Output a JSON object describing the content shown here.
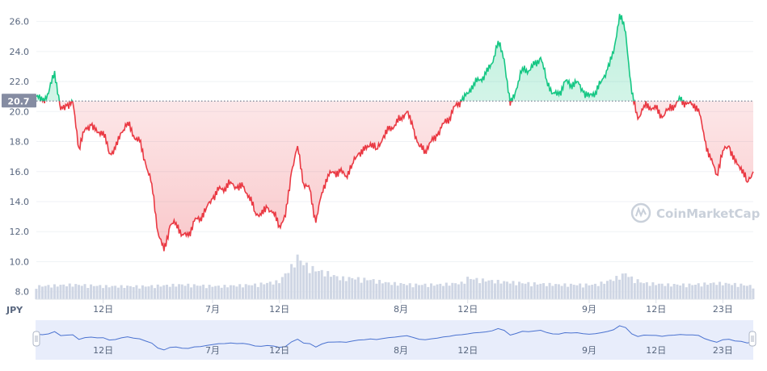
{
  "chart_data": {
    "type": "area",
    "currency": "JPY",
    "baseline": 20.7,
    "baseline_label": "20.7",
    "ylim": [
      7.5,
      27.0
    ],
    "y_ticks": [
      8.0,
      10.0,
      12.0,
      14.0,
      16.0,
      18.0,
      20.0,
      22.0,
      24.0,
      26.0
    ],
    "y_tick_labels": [
      "8.0",
      "10.0",
      "12.0",
      "14.0",
      "16.0",
      "18.0",
      "20.0",
      "22.0",
      "24.0",
      "26.0"
    ],
    "x_range": [
      0,
      118
    ],
    "x_ticks": [
      {
        "day": 11,
        "label": "12日"
      },
      {
        "day": 29,
        "label": "7月"
      },
      {
        "day": 40,
        "label": "12日"
      },
      {
        "day": 60,
        "label": "8月"
      },
      {
        "day": 71,
        "label": "12日"
      },
      {
        "day": 91,
        "label": "9月"
      },
      {
        "day": 102,
        "label": "12日"
      },
      {
        "day": 113,
        "label": "23日"
      }
    ],
    "colors": {
      "up": "#16c784",
      "down": "#ea3943",
      "volume": "#cfd6e4",
      "navigator": "#4a72d0",
      "navigator_fill": "#e6ecfb"
    },
    "watermark": "CoinMarketCap",
    "price": [
      [
        0,
        21.0
      ],
      [
        1,
        20.7
      ],
      [
        2,
        21.2
      ],
      [
        3,
        22.7
      ],
      [
        4,
        20.1
      ],
      [
        5,
        20.4
      ],
      [
        6,
        20.6
      ],
      [
        7,
        17.6
      ],
      [
        8,
        18.8
      ],
      [
        9,
        19.1
      ],
      [
        10,
        18.6
      ],
      [
        11,
        18.7
      ],
      [
        12,
        17.2
      ],
      [
        13,
        17.5
      ],
      [
        14,
        18.6
      ],
      [
        15,
        19.3
      ],
      [
        16,
        18.4
      ],
      [
        17,
        18.0
      ],
      [
        18,
        16.5
      ],
      [
        19,
        15.2
      ],
      [
        20,
        12.0
      ],
      [
        21,
        10.7
      ],
      [
        22,
        12.4
      ],
      [
        23,
        12.6
      ],
      [
        24,
        11.8
      ],
      [
        25,
        11.7
      ],
      [
        26,
        12.7
      ],
      [
        27,
        12.9
      ],
      [
        28,
        13.6
      ],
      [
        29,
        14.2
      ],
      [
        30,
        14.8
      ],
      [
        31,
        14.9
      ],
      [
        32,
        15.3
      ],
      [
        33,
        14.9
      ],
      [
        34,
        15.0
      ],
      [
        35,
        14.4
      ],
      [
        36,
        13.3
      ],
      [
        37,
        13.1
      ],
      [
        38,
        13.6
      ],
      [
        39,
        13.3
      ],
      [
        40,
        12.4
      ],
      [
        41,
        13.0
      ],
      [
        42,
        16.0
      ],
      [
        43,
        17.7
      ],
      [
        44,
        15.2
      ],
      [
        45,
        14.8
      ],
      [
        46,
        12.6
      ],
      [
        47,
        14.6
      ],
      [
        48,
        15.8
      ],
      [
        49,
        15.9
      ],
      [
        50,
        16.0
      ],
      [
        51,
        15.7
      ],
      [
        52,
        16.5
      ],
      [
        53,
        17.2
      ],
      [
        54,
        17.4
      ],
      [
        55,
        17.9
      ],
      [
        56,
        17.5
      ],
      [
        57,
        18.2
      ],
      [
        58,
        18.8
      ],
      [
        59,
        19.1
      ],
      [
        60,
        19.6
      ],
      [
        61,
        20.0
      ],
      [
        62,
        18.9
      ],
      [
        63,
        17.7
      ],
      [
        64,
        17.4
      ],
      [
        65,
        18.0
      ],
      [
        66,
        18.4
      ],
      [
        67,
        19.2
      ],
      [
        68,
        19.6
      ],
      [
        69,
        20.4
      ],
      [
        70,
        20.7
      ],
      [
        71,
        21.2
      ],
      [
        72,
        21.9
      ],
      [
        73,
        22.1
      ],
      [
        74,
        22.5
      ],
      [
        75,
        23.2
      ],
      [
        76,
        24.7
      ],
      [
        77,
        23.5
      ],
      [
        78,
        20.4
      ],
      [
        79,
        21.5
      ],
      [
        80,
        22.9
      ],
      [
        81,
        22.7
      ],
      [
        82,
        23.1
      ],
      [
        83,
        23.6
      ],
      [
        84,
        22.1
      ],
      [
        85,
        21.2
      ],
      [
        86,
        21.1
      ],
      [
        87,
        22.0
      ],
      [
        88,
        21.8
      ],
      [
        89,
        22.0
      ],
      [
        90,
        21.3
      ],
      [
        91,
        21.0
      ],
      [
        92,
        21.3
      ],
      [
        93,
        22.0
      ],
      [
        94,
        22.8
      ],
      [
        95,
        23.9
      ],
      [
        96,
        26.5
      ],
      [
        97,
        25.3
      ],
      [
        98,
        21.2
      ],
      [
        99,
        19.5
      ],
      [
        100,
        20.4
      ],
      [
        101,
        20.3
      ],
      [
        102,
        20.2
      ],
      [
        103,
        19.6
      ],
      [
        104,
        20.2
      ],
      [
        105,
        20.4
      ],
      [
        106,
        20.8
      ],
      [
        107,
        20.5
      ],
      [
        108,
        20.5
      ],
      [
        109,
        20.2
      ],
      [
        110,
        18.1
      ],
      [
        111,
        16.8
      ],
      [
        112,
        15.8
      ],
      [
        113,
        17.4
      ],
      [
        114,
        17.7
      ],
      [
        115,
        16.6
      ],
      [
        116,
        16.3
      ],
      [
        117,
        15.3
      ],
      [
        118,
        16.0
      ]
    ],
    "volume": [
      [
        0,
        0.8
      ],
      [
        6,
        0.9
      ],
      [
        12,
        0.8
      ],
      [
        18,
        0.8
      ],
      [
        24,
        0.9
      ],
      [
        30,
        0.8
      ],
      [
        36,
        0.9
      ],
      [
        40,
        1.1
      ],
      [
        42,
        2.0
      ],
      [
        43,
        2.6
      ],
      [
        44,
        2.2
      ],
      [
        46,
        1.8
      ],
      [
        48,
        1.6
      ],
      [
        50,
        1.3
      ],
      [
        52,
        1.3
      ],
      [
        55,
        1.2
      ],
      [
        58,
        1.0
      ],
      [
        62,
        0.9
      ],
      [
        66,
        0.9
      ],
      [
        70,
        1.0
      ],
      [
        71,
        1.3
      ],
      [
        73,
        1.2
      ],
      [
        76,
        1.1
      ],
      [
        80,
        1.0
      ],
      [
        86,
        0.9
      ],
      [
        92,
        0.9
      ],
      [
        94,
        1.1
      ],
      [
        96,
        1.4
      ],
      [
        97,
        1.6
      ],
      [
        98,
        1.3
      ],
      [
        100,
        1.0
      ],
      [
        104,
        0.9
      ],
      [
        108,
        0.9
      ],
      [
        112,
        1.0
      ],
      [
        116,
        0.9
      ],
      [
        118,
        0.8
      ]
    ]
  }
}
